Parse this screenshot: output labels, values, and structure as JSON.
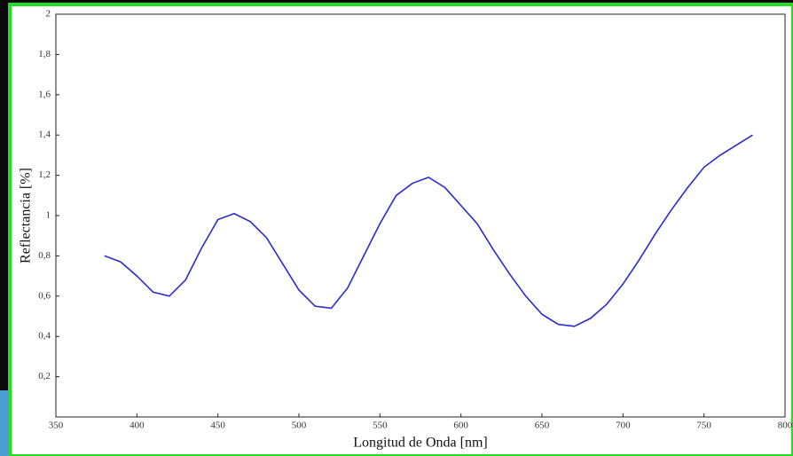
{
  "chart_data": {
    "type": "line",
    "xlabel": "Longitud de Onda [nm]",
    "ylabel": "Reflectancia [%]",
    "x": [
      380,
      390,
      400,
      410,
      420,
      430,
      440,
      450,
      460,
      470,
      480,
      490,
      500,
      510,
      520,
      530,
      540,
      550,
      560,
      570,
      580,
      590,
      600,
      610,
      620,
      630,
      640,
      650,
      660,
      670,
      680,
      690,
      700,
      710,
      720,
      730,
      740,
      750,
      760,
      770,
      780
    ],
    "series": [
      {
        "color": "#2a2ad0",
        "values": [
          0.8,
          0.77,
          0.7,
          0.62,
          0.6,
          0.68,
          0.84,
          0.98,
          1.01,
          0.97,
          0.89,
          0.76,
          0.63,
          0.55,
          0.54,
          0.64,
          0.8,
          0.96,
          1.1,
          1.16,
          1.19,
          1.14,
          1.05,
          0.96,
          0.83,
          0.71,
          0.6,
          0.51,
          0.46,
          0.45,
          0.49,
          0.56,
          0.66,
          0.78,
          0.91,
          1.03,
          1.14,
          1.24,
          1.3,
          1.35,
          1.4
        ]
      }
    ],
    "xlim": [
      350,
      800
    ],
    "xticks": [
      350,
      400,
      450,
      500,
      550,
      600,
      650,
      700,
      750,
      800
    ],
    "ylim": [
      0,
      2
    ],
    "yticks": [
      {
        "value": 0.2,
        "label": "0,2"
      },
      {
        "value": 0.4,
        "label": "0,4"
      },
      {
        "value": 0.6,
        "label": "0,6"
      },
      {
        "value": 0.8,
        "label": "0,8"
      },
      1,
      {
        "value": 1.2,
        "label": "1,2"
      },
      {
        "value": 1.4,
        "label": "1,4"
      },
      {
        "value": 1.6,
        "label": "1,6"
      },
      {
        "value": 1.8,
        "label": "1,8"
      },
      2
    ]
  }
}
